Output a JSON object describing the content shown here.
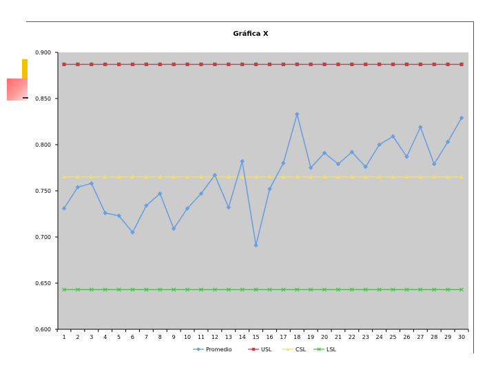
{
  "chart_data": {
    "type": "line",
    "title": "Gráfica X",
    "xlabel": "",
    "ylabel": "",
    "ylim": [
      0.6,
      0.9
    ],
    "yticks": [
      "0.600",
      "0.650",
      "0.700",
      "0.750",
      "0.800",
      "0.850",
      "0.900"
    ],
    "ytick_values": [
      0.6,
      0.65,
      0.7,
      0.75,
      0.8,
      0.85,
      0.9
    ],
    "x": [
      "1",
      "2",
      "3",
      "4",
      "5",
      "6",
      "7",
      "8",
      "9",
      "10",
      "11",
      "12",
      "13",
      "14",
      "15",
      "16",
      "17",
      "18",
      "19",
      "20",
      "21",
      "22",
      "23",
      "24",
      "25",
      "26",
      "27",
      "28",
      "29",
      "30"
    ],
    "grid": false,
    "legend": "bottom",
    "series": [
      {
        "name": "Promedio",
        "color": "#6a9fe0",
        "marker": "diamond",
        "values": [
          0.731,
          0.754,
          0.758,
          0.726,
          0.723,
          0.705,
          0.734,
          0.747,
          0.709,
          0.731,
          0.747,
          0.767,
          0.732,
          0.782,
          0.691,
          0.752,
          0.78,
          0.833,
          0.775,
          0.791,
          0.779,
          0.792,
          0.776,
          0.8,
          0.809,
          0.787,
          0.819,
          0.779,
          0.803,
          0.829
        ]
      },
      {
        "name": "USL",
        "color": "#d23a3a",
        "marker": "square",
        "values": [
          0.887,
          0.887,
          0.887,
          0.887,
          0.887,
          0.887,
          0.887,
          0.887,
          0.887,
          0.887,
          0.887,
          0.887,
          0.887,
          0.887,
          0.887,
          0.887,
          0.887,
          0.887,
          0.887,
          0.887,
          0.887,
          0.887,
          0.887,
          0.887,
          0.887,
          0.887,
          0.887,
          0.887,
          0.887,
          0.887
        ]
      },
      {
        "name": "CSL",
        "color": "#f0e070",
        "marker": "triangle",
        "values": [
          0.765,
          0.765,
          0.765,
          0.765,
          0.765,
          0.765,
          0.765,
          0.765,
          0.765,
          0.765,
          0.765,
          0.765,
          0.765,
          0.765,
          0.765,
          0.765,
          0.765,
          0.765,
          0.765,
          0.765,
          0.765,
          0.765,
          0.765,
          0.765,
          0.765,
          0.765,
          0.765,
          0.765,
          0.765,
          0.765
        ]
      },
      {
        "name": "LSL",
        "color": "#4cbf4c",
        "marker": "x",
        "values": [
          0.643,
          0.643,
          0.643,
          0.643,
          0.643,
          0.643,
          0.643,
          0.643,
          0.643,
          0.643,
          0.643,
          0.643,
          0.643,
          0.643,
          0.643,
          0.643,
          0.643,
          0.643,
          0.643,
          0.643,
          0.643,
          0.643,
          0.643,
          0.643,
          0.643,
          0.643,
          0.643,
          0.643,
          0.643,
          0.643
        ]
      }
    ],
    "colors": {
      "plot_background": "#cccccc"
    }
  }
}
